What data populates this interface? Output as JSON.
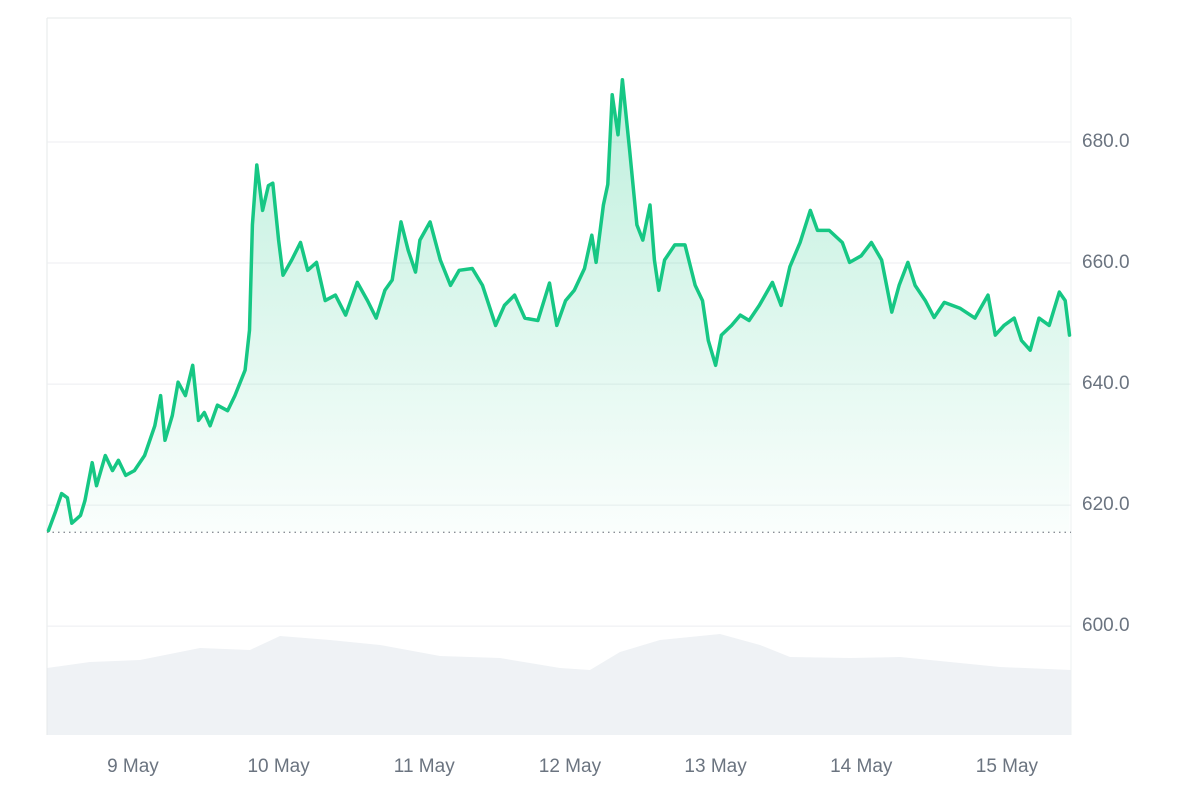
{
  "chart_data": {
    "type": "line",
    "color": "#16c784",
    "grid": true,
    "y_axis_side": "right",
    "baseline": 615.5,
    "x": [
      8.42,
      8.47,
      8.51,
      8.55,
      8.58,
      8.64,
      8.67,
      8.72,
      8.75,
      8.81,
      8.86,
      8.9,
      8.95,
      9.01,
      9.08,
      9.15,
      9.19,
      9.22,
      9.27,
      9.31,
      9.36,
      9.41,
      9.45,
      9.49,
      9.53,
      9.58,
      9.65,
      9.7,
      9.77,
      9.8,
      9.82,
      9.85,
      9.89,
      9.93,
      9.96,
      10.0,
      10.03,
      10.09,
      10.15,
      10.2,
      10.26,
      10.32,
      10.39,
      10.46,
      10.54,
      10.61,
      10.67,
      10.73,
      10.78,
      10.84,
      10.89,
      10.94,
      10.97,
      11.04,
      11.11,
      11.18,
      11.24,
      11.33,
      11.4,
      11.49,
      11.55,
      11.62,
      11.69,
      11.78,
      11.86,
      11.91,
      11.97,
      12.03,
      12.1,
      12.15,
      12.18,
      12.23,
      12.26,
      12.29,
      12.33,
      12.36,
      12.41,
      12.46,
      12.5,
      12.55,
      12.58,
      12.61,
      12.65,
      12.72,
      12.79,
      12.86,
      12.91,
      12.95,
      13.0,
      13.04,
      13.11,
      13.17,
      13.23,
      13.3,
      13.39,
      13.45,
      13.51,
      13.58,
      13.65,
      13.7,
      13.78,
      13.87,
      13.92,
      14.0,
      14.07,
      14.14,
      14.21,
      14.26,
      14.32,
      14.37,
      14.44,
      14.5,
      14.57,
      14.68,
      14.78,
      14.87,
      14.92,
      14.98,
      15.05,
      15.1,
      15.16,
      15.22,
      15.29,
      15.36,
      15.4,
      15.43
    ],
    "values": [
      615.8,
      619,
      621.9,
      621.2,
      617,
      618.3,
      620.7,
      627,
      623.2,
      628.2,
      625.7,
      627.4,
      624.9,
      625.7,
      628.2,
      633.1,
      638.1,
      630.7,
      634.8,
      640.3,
      638.1,
      643.1,
      634,
      635.3,
      633.1,
      636.5,
      635.6,
      638.1,
      642.3,
      648.9,
      666.3,
      676.2,
      668.7,
      672.8,
      673.2,
      663.8,
      658,
      660.5,
      663.4,
      658.8,
      660.1,
      653.8,
      654.7,
      651.4,
      656.8,
      653.8,
      650.9,
      655.5,
      657.2,
      666.8,
      662.1,
      658.5,
      663.8,
      666.8,
      660.5,
      656.3,
      658.8,
      659.1,
      656.3,
      649.7,
      653,
      654.7,
      650.9,
      650.5,
      656.7,
      649.7,
      653.8,
      655.5,
      659.1,
      664.6,
      660.1,
      669.6,
      673,
      687.8,
      681.2,
      690.3,
      678.7,
      666.3,
      663.8,
      669.6,
      660.5,
      655.5,
      660.5,
      663,
      663,
      656.3,
      653.8,
      647.2,
      643.1,
      648.1,
      649.7,
      651.4,
      650.5,
      653,
      656.8,
      653,
      659.4,
      663.4,
      668.7,
      665.4,
      665.4,
      663.4,
      660.1,
      661.2,
      663.4,
      660.5,
      651.9,
      656.3,
      660.1,
      656.3,
      653.8,
      651,
      653.5,
      652.5,
      650.9,
      654.7,
      648.1,
      649.7,
      650.9,
      647.2,
      645.6,
      650.9,
      649.7,
      655.2,
      653.8,
      648.1
    ],
    "xlim": [
      8.41,
      15.44
    ],
    "xticks": [
      {
        "value": 9,
        "label": "9 May"
      },
      {
        "value": 10,
        "label": "10 May"
      },
      {
        "value": 11,
        "label": "11 May"
      },
      {
        "value": 12,
        "label": "12 May"
      },
      {
        "value": 13,
        "label": "13 May"
      },
      {
        "value": 14,
        "label": "14 May"
      },
      {
        "value": 15,
        "label": "15 May"
      }
    ],
    "ylim": [
      582,
      700.5
    ],
    "yticks": [
      {
        "value": 600,
        "label": "600.0"
      },
      {
        "value": 620,
        "label": "620.0"
      },
      {
        "value": 640,
        "label": "640.0"
      },
      {
        "value": 660,
        "label": "660.0"
      },
      {
        "value": 680,
        "label": "680.0"
      }
    ]
  }
}
